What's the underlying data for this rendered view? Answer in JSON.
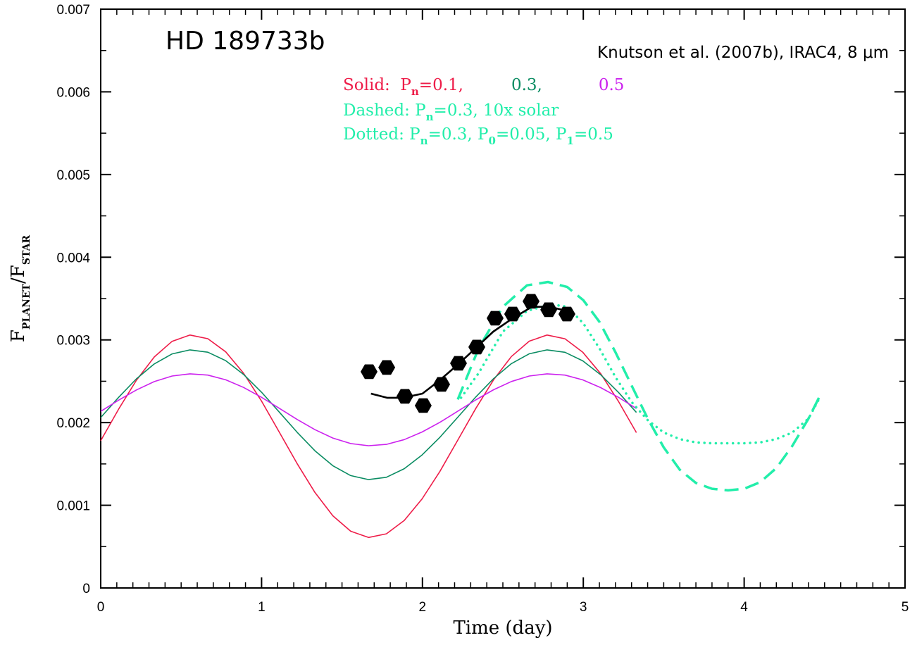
{
  "chart_data": {
    "type": "line",
    "title": "HD 189733b",
    "subtitle": "Knutson et al. (2007b), IRAC4, 8 μm",
    "x_label": "Time (day)",
    "y_label": [
      {
        "text": "F"
      },
      {
        "text": "PLANET",
        "sub": true
      },
      {
        "text": "/F"
      },
      {
        "text": "STAR",
        "sub": true
      }
    ],
    "annotations": [
      [
        {
          "text": "Solid:  P",
          "color": "#ee1c48"
        },
        {
          "text": "n",
          "color": "#ee1c48",
          "sub": true
        },
        {
          "text": "=0.1,",
          "color": "#ee1c48"
        },
        {
          "text": "0.3,",
          "color": "#0a8c62"
        },
        {
          "text": "0.5",
          "color": "#cc22ee"
        }
      ],
      [
        {
          "text": "Dashed: P",
          "color": "#22eeaa"
        },
        {
          "text": "n",
          "color": "#22eeaa",
          "sub": true
        },
        {
          "text": "=0.3, 10x solar",
          "color": "#22eeaa"
        }
      ],
      [
        {
          "text": "Dotted: P",
          "color": "#22eeaa"
        },
        {
          "text": "n",
          "color": "#22eeaa",
          "sub": true
        },
        {
          "text": "=0.3, P",
          "color": "#22eeaa"
        },
        {
          "text": "0",
          "color": "#22eeaa",
          "sub": true
        },
        {
          "text": "=0.05, P",
          "color": "#22eeaa"
        },
        {
          "text": "1",
          "color": "#22eeaa",
          "sub": true
        },
        {
          "text": "=0.5",
          "color": "#22eeaa"
        }
      ]
    ],
    "xlim": [
      0,
      5
    ],
    "ylim": [
      0,
      0.007
    ],
    "xticks": [
      0,
      1,
      2,
      3,
      4,
      5
    ],
    "yticks": [
      0,
      0.001,
      0.002,
      0.003,
      0.004,
      0.005,
      0.006,
      0.007
    ],
    "x": [
      0,
      0.111,
      0.222,
      0.333,
      0.444,
      0.555,
      0.666,
      0.777,
      0.888,
      0.999,
      1.11,
      1.221,
      1.332,
      1.443,
      1.554,
      1.665,
      1.776,
      1.887,
      1.998,
      2.109,
      2.22,
      2.331,
      2.442,
      2.553,
      2.664,
      2.775,
      2.886,
      2.997,
      3.108,
      3.219,
      3.33
    ],
    "series": [
      {
        "style": "solid",
        "color": "#ee1c48",
        "linewidth": 1.6,
        "values": [
          0.001781,
          0.002162,
          0.002512,
          0.002794,
          0.002983,
          0.003059,
          0.003015,
          0.002855,
          0.002597,
          0.002262,
          0.001885,
          0.001504,
          0.001155,
          0.000873,
          0.000686,
          0.000611,
          0.000655,
          0.000817,
          0.001077,
          0.001411,
          0.001788,
          0.002169,
          0.002517,
          0.002799,
          0.002985,
          0.003059,
          0.003014,
          0.00285,
          0.002591,
          0.002256,
          0.001879
        ]
      },
      {
        "style": "solid",
        "color": "#0a8c62",
        "linewidth": 1.6,
        "values": [
          0.002061,
          0.002305,
          0.002529,
          0.00271,
          0.002831,
          0.002879,
          0.002851,
          0.002749,
          0.002583,
          0.002368,
          0.002127,
          0.001883,
          0.001659,
          0.001478,
          0.001359,
          0.001311,
          0.001339,
          0.001443,
          0.001609,
          0.001823,
          0.002065,
          0.002309,
          0.002532,
          0.002713,
          0.002832,
          0.002879,
          0.00285,
          0.002746,
          0.002579,
          0.002365,
          0.002123
        ]
      },
      {
        "style": "solid",
        "color": "#cc22ee",
        "linewidth": 1.6,
        "values": [
          0.002136,
          0.002271,
          0.002395,
          0.002496,
          0.002563,
          0.00259,
          0.002574,
          0.002517,
          0.002425,
          0.002306,
          0.002173,
          0.002038,
          0.001914,
          0.001813,
          0.001747,
          0.00172,
          0.001736,
          0.001794,
          0.001886,
          0.002004,
          0.002138,
          0.002274,
          0.002397,
          0.002497,
          0.002563,
          0.00259,
          0.002574,
          0.002516,
          0.002423,
          0.002305,
          0.00217
        ]
      },
      {
        "style": "dashed",
        "color": "#22eeaa",
        "linewidth": 3.5,
        "x": [
          2.22,
          2.35,
          2.5,
          2.65,
          2.78,
          2.9,
          3.0,
          3.1,
          3.2,
          3.3,
          3.4,
          3.5,
          3.6,
          3.7,
          3.8,
          3.9,
          4.0,
          4.1,
          4.2,
          4.3,
          4.4,
          4.47
        ],
        "values": [
          0.00228,
          0.0029,
          0.0034,
          0.00366,
          0.0037,
          0.00364,
          0.00348,
          0.00322,
          0.00285,
          0.00245,
          0.00205,
          0.0017,
          0.00143,
          0.00127,
          0.0012,
          0.00118,
          0.0012,
          0.00128,
          0.00145,
          0.00172,
          0.00205,
          0.00232
        ]
      },
      {
        "style": "dotted",
        "color": "#22eeaa",
        "linewidth": 3.5,
        "x": [
          2.24,
          2.35,
          2.5,
          2.65,
          2.8,
          2.9,
          3.0,
          3.1,
          3.2,
          3.3,
          3.4,
          3.5,
          3.6,
          3.7,
          3.8,
          4.0,
          4.1,
          4.2,
          4.3,
          4.4,
          4.47
        ],
        "values": [
          0.0023,
          0.0026,
          0.0031,
          0.00335,
          0.00343,
          0.0034,
          0.0032,
          0.0029,
          0.00255,
          0.00225,
          0.00203,
          0.00188,
          0.0018,
          0.00176,
          0.00175,
          0.00175,
          0.00176,
          0.0018,
          0.00188,
          0.00205,
          0.0023
        ]
      },
      {
        "style": "solid",
        "color": "#000000",
        "linewidth": 2.6,
        "x": [
          1.68,
          1.78,
          1.88,
          2.0,
          2.1,
          2.22,
          2.33,
          2.44,
          2.56,
          2.68,
          2.79,
          2.9
        ],
        "values": [
          0.00235,
          0.0023,
          0.0023,
          0.00235,
          0.0025,
          0.0027,
          0.0029,
          0.0031,
          0.00326,
          0.0034,
          0.0034,
          0.00335
        ]
      },
      {
        "style": "markers",
        "color": "#000000",
        "x": [
          1.668,
          1.778,
          1.891,
          2.005,
          2.119,
          2.224,
          2.338,
          2.452,
          2.561,
          2.675,
          2.785,
          2.898
        ],
        "values": [
          0.002615,
          0.002666,
          0.002317,
          0.002206,
          0.002462,
          0.002717,
          0.002913,
          0.003262,
          0.003313,
          0.003467,
          0.003365,
          0.003313
        ]
      }
    ]
  }
}
